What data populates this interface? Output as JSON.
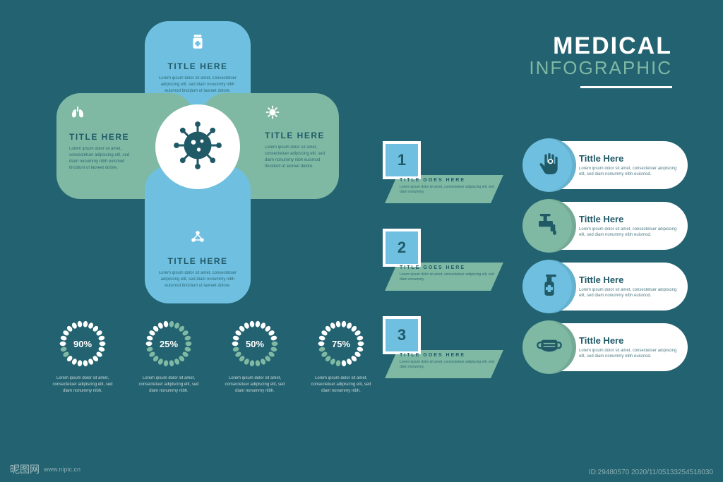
{
  "colors": {
    "background": "#236270",
    "blue": "#6fc0e0",
    "green": "#7fb9a4",
    "white": "#ffffff",
    "dark": "#215a67"
  },
  "title": {
    "line1": "MEDICAL",
    "line2": "INFOGRAPHIC"
  },
  "cross": {
    "center_icon": "virus",
    "petals": [
      {
        "pos": "top",
        "icon": "jar",
        "title": "TITLE HERE",
        "desc": "Lorem ipsum dolor sit amet, consectetuer adipiscing elit, sed diam nonummy nibh euismod tincidunt ut laoreet dolore."
      },
      {
        "pos": "left",
        "icon": "lungs",
        "title": "TITLE HERE",
        "desc": "Lorem ipsum dolor sit amet, consectetuer adipiscing elit, sed diam nonummy nibh euismod tincidunt ut laoreet dolore."
      },
      {
        "pos": "right",
        "icon": "microbe",
        "title": "TITLE HERE",
        "desc": "Lorem ipsum dolor sit amet, consectetuer adipiscing elit, sed diam nonummy nibh euismod tincidunt ut laoreet dolore."
      },
      {
        "pos": "bottom",
        "icon": "molecule",
        "title": "TITLE HERE",
        "desc": "Lorem ipsum dolor sit amet, consectetuer adipiscing elit, sed diam nonummy nibh euismod tincidunt ut laoreet dolore."
      }
    ]
  },
  "rings": {
    "bead_count": 22,
    "bead_color_fg": "#ffffff",
    "bead_color_bg": "#7fb9a4",
    "items": [
      {
        "value": 90,
        "label": "90%",
        "desc": "Lorem ipsum dolor sit amet, consectetuer adipiscing elit, sed diam nonummy nibh."
      },
      {
        "value": 25,
        "label": "25%",
        "desc": "Lorem ipsum dolor sit amet, consectetuer adipiscing elit, sed diam nonummy nibh."
      },
      {
        "value": 50,
        "label": "50%",
        "desc": "Lorem ipsum dolor sit amet, consectetuer adipiscing elit, sed diam nonummy nibh."
      },
      {
        "value": 75,
        "label": "75%",
        "desc": "Lorem ipsum dolor sit amet, consectetuer adipiscing elit, sed diam nonummy nibh."
      }
    ]
  },
  "steps": [
    {
      "num": "1",
      "title": "TITLE GOES HERE",
      "desc": "Lorem ipsum dolor sit amet, consectetuer adipiscing elit, sed diam nonummy."
    },
    {
      "num": "2",
      "title": "TITLE GOES HERE",
      "desc": "Lorem ipsum dolor sit amet, consectetuer adipiscing elit, sed diam nonummy."
    },
    {
      "num": "3",
      "title": "TITLE GOES HERE",
      "desc": "Lorem ipsum dolor sit amet, consectetuer adipiscing elit, sed diam nonummy."
    }
  ],
  "pills": [
    {
      "icon": "hand",
      "circle_color": "#6fc0e0",
      "title": "Tittle Here",
      "desc": "Lorem ipsum dolor sit amet, consectetuer adipiscing elit, sed diam nonummy nibh euismod."
    },
    {
      "icon": "faucet",
      "circle_color": "#7fb9a4",
      "title": "Tittle Here",
      "desc": "Lorem ipsum dolor sit amet, consectetuer adipiscing elit, sed diam nonummy nibh euismod."
    },
    {
      "icon": "sanitizer",
      "circle_color": "#6fc0e0",
      "title": "Tittle Here",
      "desc": "Lorem ipsum dolor sit amet, consectetuer adipiscing elit, sed diam nonummy nibh euismod."
    },
    {
      "icon": "mask",
      "circle_color": "#7fb9a4",
      "title": "Tittle Here",
      "desc": "Lorem ipsum dolor sit amet, consectetuer adipiscing elit, sed diam nonummy nibh euismod."
    }
  ],
  "watermark": {
    "brand": "昵图网",
    "url": "www.nipic.cn"
  },
  "image_id": "ID:29480570  2020/11/05133254518030"
}
